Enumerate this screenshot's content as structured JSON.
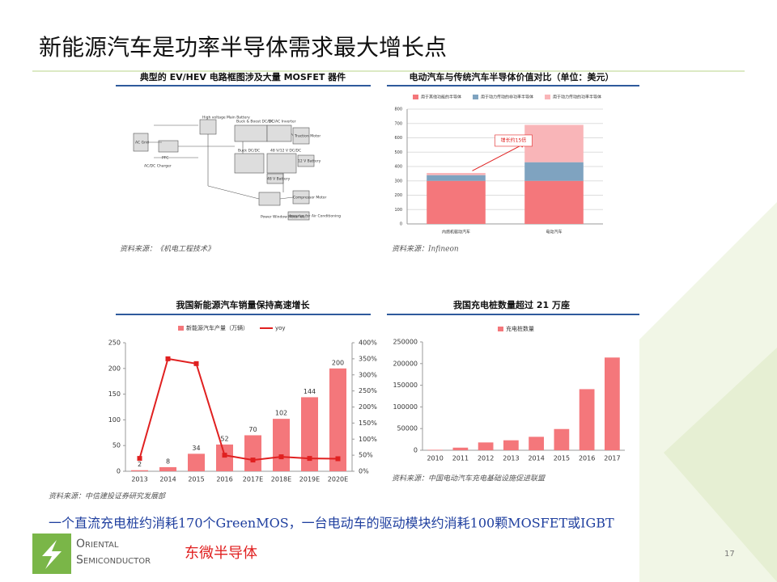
{
  "slide": {
    "title": "新能源汽车是功率半导体需求最大增长点",
    "footnote": "一个直流充电桩约消耗170个GreenMOS，一台电动车的驱动模块约消耗100颗MOSFET或IGBT",
    "company": "东微半导体",
    "logo_line1": "Oriental",
    "logo_line2": "Semiconductor",
    "page_number": "17"
  },
  "diagram": {
    "title": "典型的 EV/HEV 电路框图涉及大量 MOSFET 器件",
    "source": "资料来源：《机电工程技术》",
    "labels": [
      "AC Grid",
      "PFC",
      "AC/DC Charger",
      "High voltage Main Battery",
      "Buck & Boost DC/DC",
      "DC/AC Inverter",
      "Traction Motor",
      "Buck DC/DC",
      "48 V/12 V DC/DC",
      "12 V Battery",
      "48 V Battery",
      "Compressor Motor",
      "Inverter for Air Conditioning",
      "Power Window Motor etc."
    ]
  },
  "chart_data": [
    {
      "type": "stacked_bar",
      "title": "电动汽车与传统汽车半导体价值对比（单位：美元）",
      "source": "资料来源：Infineon",
      "annotation": "增长约15倍",
      "categories": [
        "内燃机驱动汽车",
        "电动汽车"
      ],
      "series": [
        {
          "name": "用于其他功能的半导体",
          "color": "#f4777b",
          "values": [
            300,
            300
          ]
        },
        {
          "name": "用于动力传动的非功率半导体",
          "color": "#7fa3c0",
          "values": [
            40,
            130
          ]
        },
        {
          "name": "用于动力传动的功率半导体",
          "color": "#f9b5b8",
          "values": [
            15,
            260
          ]
        }
      ],
      "ylim": [
        0,
        800
      ],
      "yticks": [
        0,
        100,
        200,
        300,
        400,
        500,
        600,
        700,
        800
      ],
      "grid": true
    },
    {
      "type": "bar_line",
      "title": "我国新能源汽车销量保持高速增长",
      "source": "资料来源：中信建投证券研究发展部",
      "categories": [
        "2013",
        "2014",
        "2015",
        "2016",
        "2017E",
        "2018E",
        "2019E",
        "2020E"
      ],
      "series": [
        {
          "name": "新能源汽车产量（万辆）",
          "color": "#f4777b",
          "values": [
            2,
            8,
            34,
            52,
            70,
            102,
            144,
            200
          ]
        },
        {
          "name": "yoy",
          "color": "#e02020",
          "axis": "y2",
          "values": [
            40,
            350,
            335,
            50,
            35,
            45,
            40,
            39
          ]
        }
      ],
      "ylim": [
        0,
        250
      ],
      "yticks": [
        0,
        50,
        100,
        150,
        200,
        250
      ],
      "y2lim": [
        0,
        400
      ],
      "y2ticks": [
        {
          "value": 0,
          "label": "0%"
        },
        {
          "value": 50,
          "label": "50%"
        },
        {
          "value": 100,
          "label": "100%"
        },
        {
          "value": 150,
          "label": "150%"
        },
        {
          "value": 200,
          "label": "200%"
        },
        {
          "value": 250,
          "label": "250%"
        },
        {
          "value": 300,
          "label": "300%"
        },
        {
          "value": 350,
          "label": "350%"
        },
        {
          "value": 400,
          "label": "400%"
        }
      ]
    },
    {
      "type": "bar",
      "title": "我国充电桩数量超过 21 万座",
      "source": "资料来源：中国电动汽车充电基础设施促进联盟",
      "categories": [
        "2010",
        "2011",
        "2012",
        "2013",
        "2014",
        "2015",
        "2016",
        "2017"
      ],
      "series": [
        {
          "name": "充电桩数量",
          "color": "#f4777b",
          "values": [
            1000,
            6000,
            18000,
            23000,
            31000,
            49000,
            141000,
            214000
          ]
        }
      ],
      "ylim": [
        0,
        250000
      ],
      "yticks": [
        0,
        50000,
        100000,
        150000,
        200000,
        250000
      ]
    }
  ]
}
